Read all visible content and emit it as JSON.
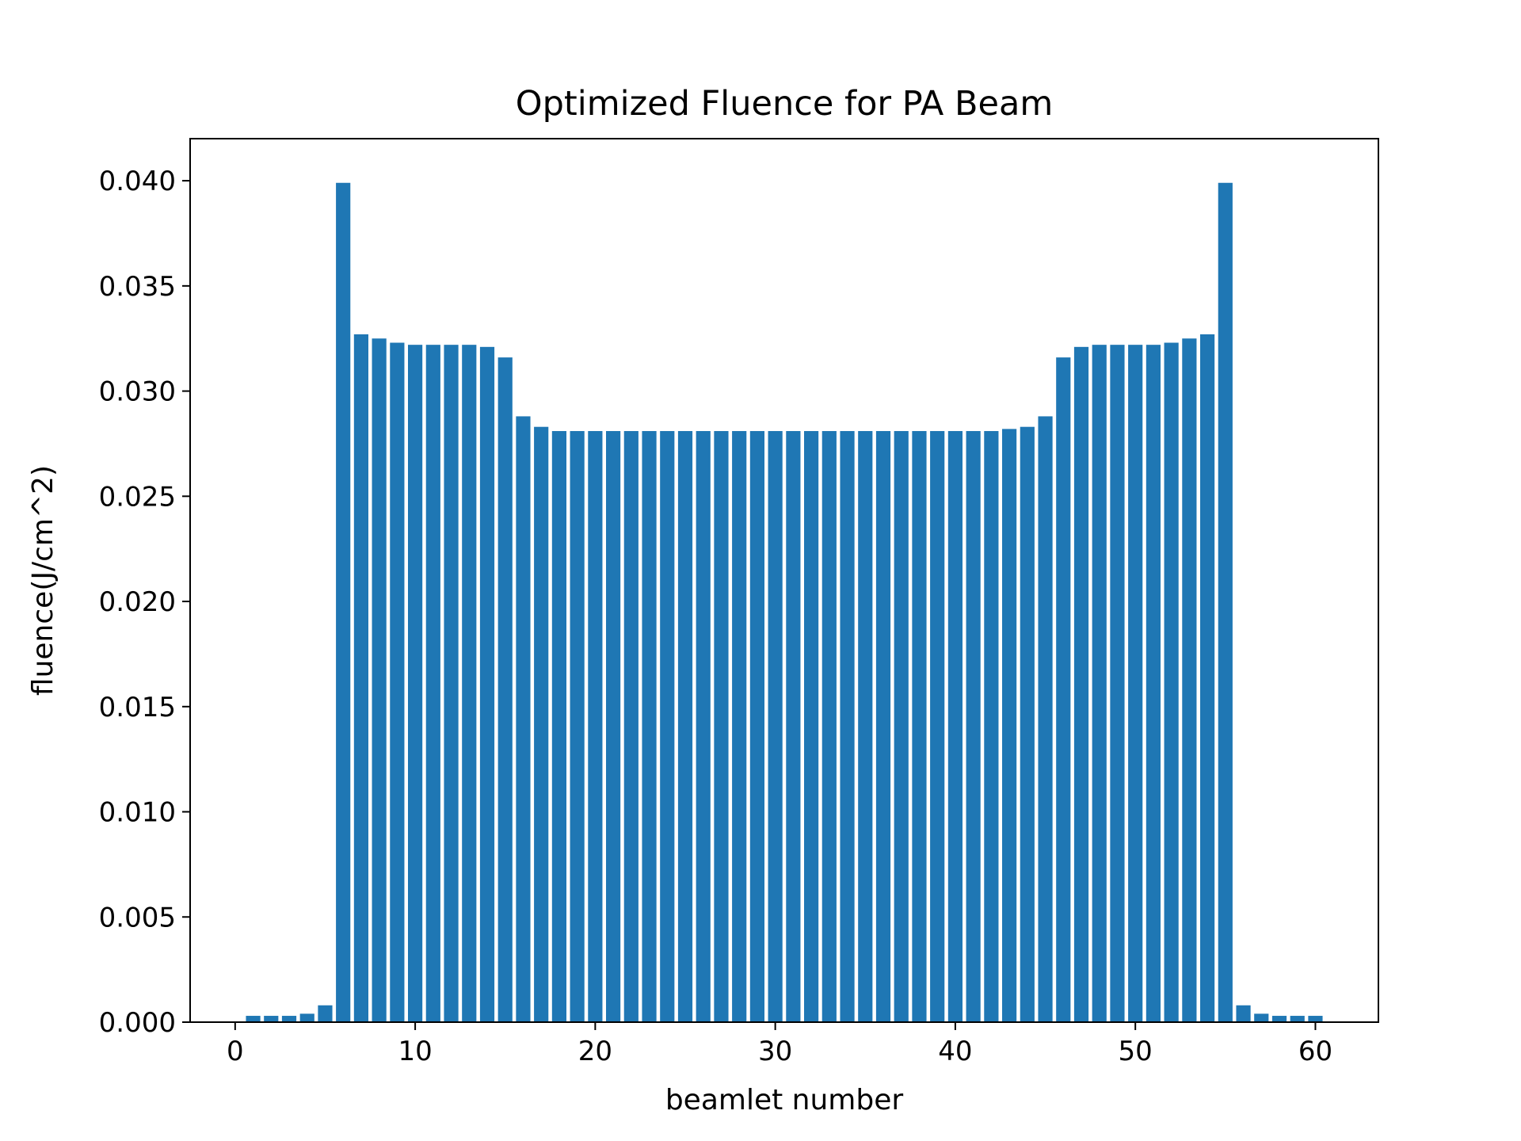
{
  "chart_data": {
    "type": "bar",
    "title": "Optimized Fluence for PA Beam",
    "xlabel": "beamlet number",
    "ylabel": "fluence(J/cm^2)",
    "xlim": [
      -2.5,
      63.5
    ],
    "ylim": [
      0,
      0.042
    ],
    "xticks": [
      "0",
      "10",
      "20",
      "30",
      "40",
      "50",
      "60"
    ],
    "yticks": [
      "0.000",
      "0.005",
      "0.010",
      "0.015",
      "0.020",
      "0.025",
      "0.030",
      "0.035",
      "0.040"
    ],
    "grid": false,
    "color": "#1f77b4",
    "x": [
      0,
      1,
      2,
      3,
      4,
      5,
      6,
      7,
      8,
      9,
      10,
      11,
      12,
      13,
      14,
      15,
      16,
      17,
      18,
      19,
      20,
      21,
      22,
      23,
      24,
      25,
      26,
      27,
      28,
      29,
      30,
      31,
      32,
      33,
      34,
      35,
      36,
      37,
      38,
      39,
      40,
      41,
      42,
      43,
      44,
      45,
      46,
      47,
      48,
      49,
      50,
      51,
      52,
      53,
      54,
      55,
      56,
      57,
      58,
      59,
      60
    ],
    "values": [
      0.0,
      0.0003,
      0.0003,
      0.0003,
      0.0004,
      0.0008,
      0.0399,
      0.0327,
      0.0325,
      0.0323,
      0.0322,
      0.0322,
      0.0322,
      0.0322,
      0.0321,
      0.0316,
      0.0288,
      0.0283,
      0.0281,
      0.0281,
      0.0281,
      0.0281,
      0.0281,
      0.0281,
      0.0281,
      0.0281,
      0.0281,
      0.0281,
      0.0281,
      0.0281,
      0.0281,
      0.0281,
      0.0281,
      0.0281,
      0.0281,
      0.0281,
      0.0281,
      0.0281,
      0.0281,
      0.0281,
      0.0281,
      0.0281,
      0.0281,
      0.0282,
      0.0283,
      0.0288,
      0.0316,
      0.0321,
      0.0322,
      0.0322,
      0.0322,
      0.0322,
      0.0323,
      0.0325,
      0.0327,
      0.0399,
      0.0008,
      0.0004,
      0.0003,
      0.0003,
      0.0003
    ]
  }
}
